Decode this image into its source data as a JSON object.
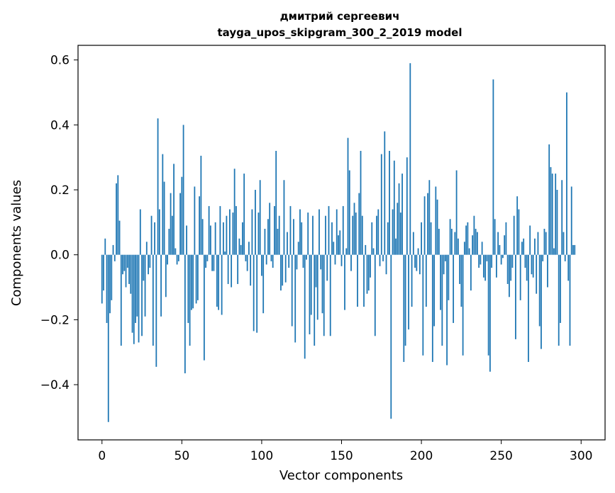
{
  "chart_data": {
    "type": "bar",
    "title": "дмитрий сергеевич",
    "subtitle": "tayga_upos_skipgram_300_2_2019 model",
    "xlabel": "Vector components",
    "ylabel": "Components values",
    "xlim": [
      -15,
      315
    ],
    "ylim": [
      -0.57,
      0.645
    ],
    "xticks": [
      0,
      50,
      100,
      150,
      200,
      250,
      300
    ],
    "xtick_labels": [
      "0",
      "50",
      "100",
      "150",
      "200",
      "250",
      "300"
    ],
    "yticks": [
      -0.4,
      -0.2,
      0.0,
      0.2,
      0.4,
      0.6
    ],
    "ytick_labels": [
      "−0.4",
      "−0.2",
      "0.0",
      "0.2",
      "0.4",
      "0.6"
    ],
    "bar_color": "#1f77b4",
    "grid": false,
    "values": [
      -0.15,
      -0.11,
      0.05,
      -0.21,
      -0.515,
      -0.18,
      -0.14,
      0.03,
      -0.02,
      0.22,
      0.245,
      0.105,
      -0.28,
      -0.06,
      -0.05,
      -0.1,
      -0.04,
      -0.09,
      -0.12,
      -0.24,
      -0.275,
      -0.21,
      -0.19,
      -0.27,
      0.14,
      -0.25,
      -0.08,
      -0.19,
      0.04,
      -0.06,
      -0.04,
      0.12,
      -0.28,
      0.1,
      -0.345,
      0.42,
      0.14,
      -0.19,
      0.31,
      0.225,
      -0.13,
      -0.03,
      0.08,
      0.19,
      0.12,
      0.28,
      0.02,
      -0.03,
      -0.02,
      0.19,
      0.24,
      0.4,
      -0.365,
      0.09,
      -0.21,
      -0.28,
      -0.17,
      -0.165,
      0.21,
      -0.15,
      -0.14,
      0.18,
      0.305,
      0.11,
      -0.325,
      -0.04,
      -0.02,
      0.15,
      0.09,
      -0.05,
      -0.05,
      0.1,
      -0.16,
      -0.17,
      0.15,
      -0.185,
      0.1,
      0.01,
      0.12,
      -0.09,
      0.14,
      -0.1,
      0.13,
      0.265,
      0.15,
      -0.09,
      0.05,
      0.03,
      0.1,
      0.25,
      -0.02,
      -0.05,
      0.04,
      -0.095,
      0.14,
      -0.235,
      0.2,
      -0.24,
      0.13,
      0.23,
      -0.065,
      -0.18,
      0.08,
      -0.03,
      0.11,
      0.16,
      -0.02,
      -0.04,
      0.15,
      0.32,
      0.08,
      0.12,
      -0.11,
      -0.095,
      0.23,
      -0.085,
      0.07,
      -0.04,
      0.15,
      -0.22,
      0.11,
      -0.27,
      -0.045,
      0.04,
      0.14,
      0.1,
      -0.04,
      -0.32,
      -0.015,
      0.13,
      -0.245,
      -0.185,
      0.12,
      -0.28,
      -0.1,
      -0.2,
      0.14,
      -0.045,
      -0.18,
      -0.25,
      0.12,
      -0.08,
      0.15,
      -0.25,
      0.1,
      0.04,
      -0.03,
      0.14,
      0.06,
      0.075,
      -0.035,
      0.15,
      -0.17,
      0.02,
      0.36,
      0.26,
      -0.05,
      0.12,
      0.16,
      0.13,
      -0.16,
      0.19,
      0.32,
      0.12,
      -0.16,
      0.03,
      -0.12,
      -0.11,
      -0.07,
      0.1,
      0.02,
      -0.25,
      0.12,
      0.14,
      -0.035,
      0.31,
      -0.02,
      0.38,
      -0.06,
      0.1,
      0.32,
      -0.505,
      0.14,
      0.29,
      0.05,
      0.16,
      0.22,
      0.13,
      0.25,
      -0.33,
      -0.28,
      0.3,
      -0.23,
      0.59,
      -0.16,
      0.07,
      -0.04,
      -0.05,
      0.02,
      -0.06,
      0.1,
      -0.31,
      0.18,
      -0.16,
      0.19,
      0.23,
      0.1,
      -0.33,
      -0.22,
      0.21,
      0.17,
      0.08,
      -0.17,
      -0.28,
      -0.06,
      -0.02,
      -0.34,
      -0.14,
      0.11,
      0.08,
      -0.21,
      0.07,
      0.26,
      0.05,
      -0.09,
      -0.16,
      -0.31,
      0.04,
      0.09,
      0.1,
      0.02,
      -0.11,
      0.06,
      0.12,
      0.08,
      0.07,
      -0.04,
      -0.03,
      0.04,
      -0.07,
      -0.08,
      -0.02,
      -0.31,
      -0.36,
      -0.04,
      0.54,
      0.11,
      -0.07,
      0.07,
      0.03,
      -0.03,
      -0.01,
      0.06,
      0.1,
      -0.09,
      -0.13,
      -0.08,
      -0.04,
      0.12,
      -0.26,
      0.18,
      0.14,
      -0.14,
      0.04,
      0.05,
      -0.04,
      -0.08,
      -0.33,
      0.09,
      -0.06,
      -0.07,
      0.05,
      -0.12,
      0.07,
      -0.22,
      -0.29,
      -0.02,
      0.08,
      0.07,
      -0.1,
      0.34,
      0.27,
      0.25,
      0.02,
      0.25,
      0.2,
      -0.28,
      -0.21,
      0.23,
      0.07,
      -0.02,
      0.5,
      -0.08,
      -0.28,
      0.21,
      0.03,
      0.03
    ]
  }
}
